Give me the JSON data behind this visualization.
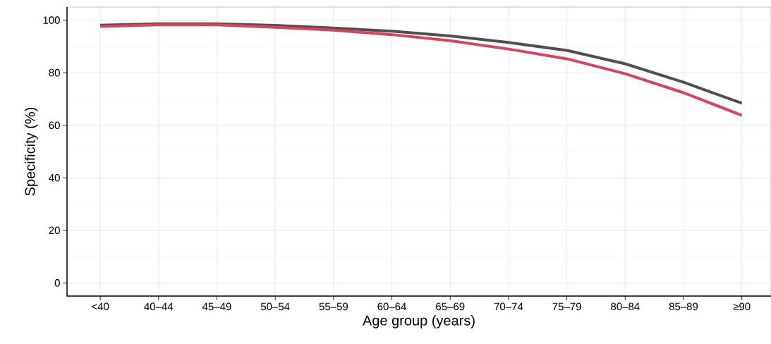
{
  "chart_data": {
    "type": "line",
    "xlabel": "Age group (years)",
    "ylabel": "Specificity (%)",
    "categories": [
      "<40",
      "40–44",
      "45–49",
      "50–54",
      "55–59",
      "60–64",
      "65–69",
      "70–74",
      "75–79",
      "80–84",
      "85–89",
      "≥90"
    ],
    "series": [
      {
        "color": "#505050",
        "values": [
          98.1,
          98.6,
          98.6,
          98.0,
          97.0,
          95.8,
          94.0,
          91.5,
          88.5,
          83.4,
          76.4,
          68.4
        ]
      },
      {
        "color": "#d6455d",
        "values": [
          97.6,
          98.2,
          98.2,
          97.3,
          96.2,
          94.5,
          92.2,
          89.0,
          85.3,
          79.6,
          72.4,
          63.8
        ]
      }
    ],
    "ylim": [
      -5,
      105
    ],
    "yticks": [
      0,
      20,
      40,
      60,
      80,
      100
    ],
    "grid": true,
    "line_style": "solid",
    "marker": "none"
  }
}
